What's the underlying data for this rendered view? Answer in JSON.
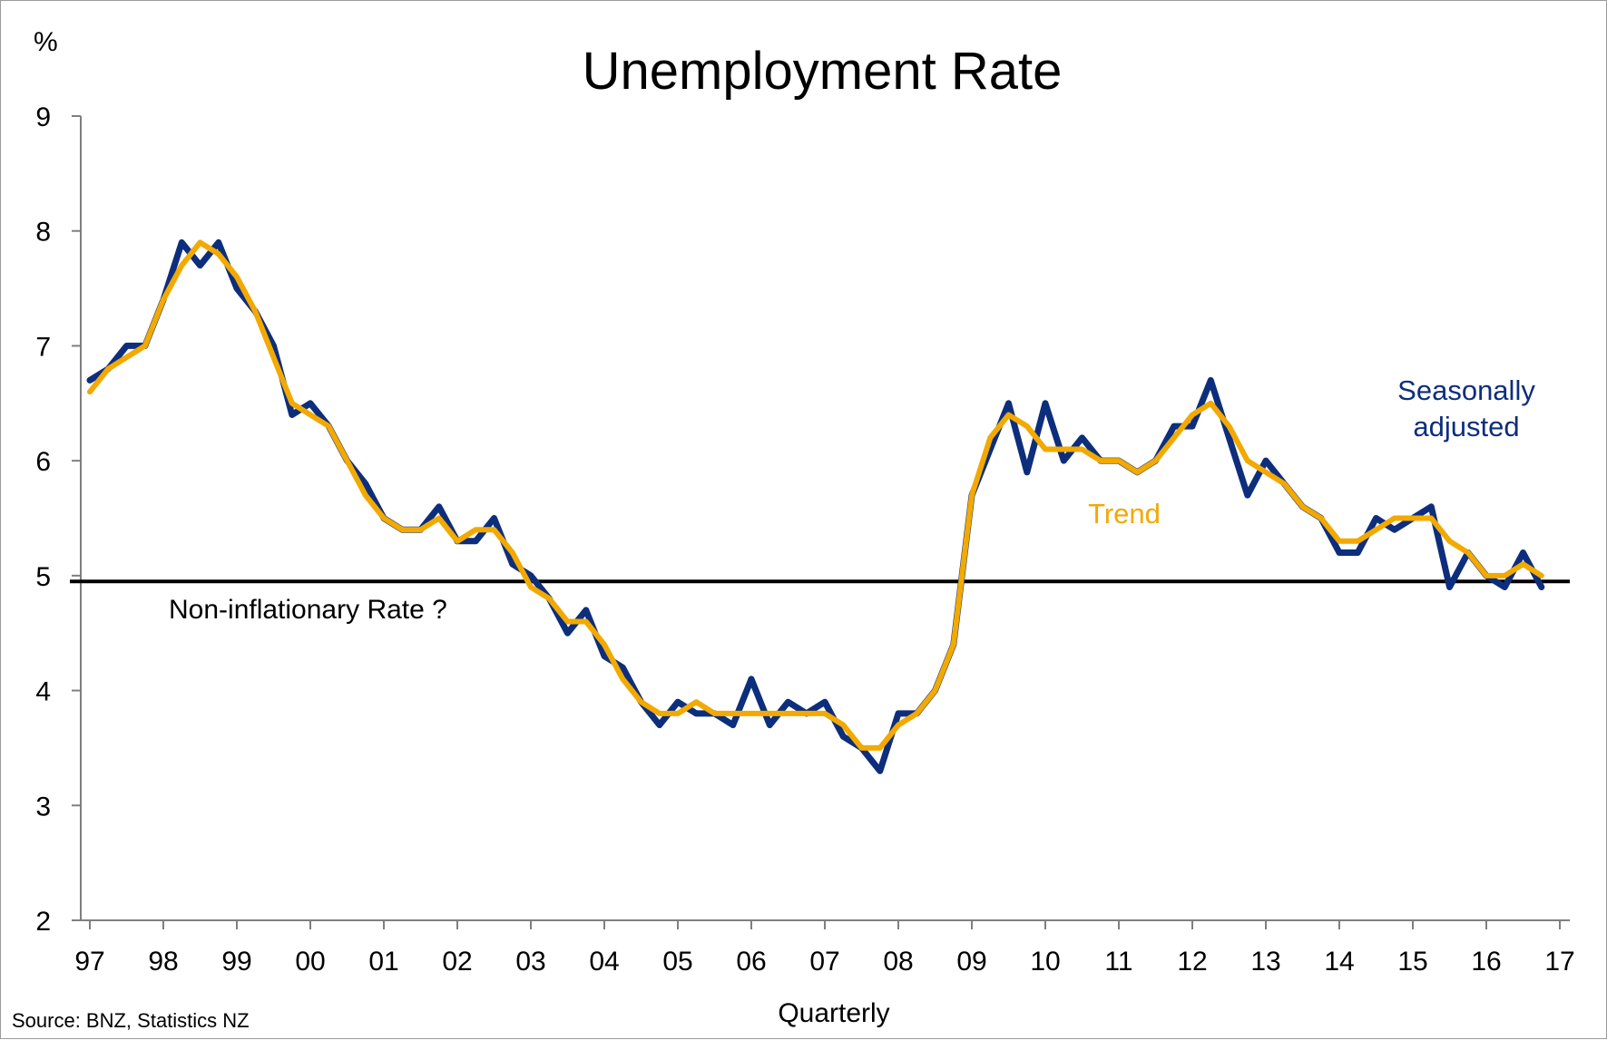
{
  "chart_data": {
    "type": "line",
    "title": "Unemployment Rate",
    "y_unit": "%",
    "xlabel": "Quarterly",
    "ylabel": "",
    "ylim": [
      2,
      9
    ],
    "yticks": [
      2,
      3,
      4,
      5,
      6,
      7,
      8,
      9
    ],
    "x_tick_labels": [
      "97",
      "98",
      "99",
      "00",
      "01",
      "02",
      "03",
      "04",
      "05",
      "06",
      "07",
      "08",
      "09",
      "10",
      "11",
      "12",
      "13",
      "14",
      "15",
      "16",
      "17"
    ],
    "x_start": "1997 Q1",
    "x_end": "2017 Q1",
    "grid": false,
    "reference_line": {
      "value": 4.95,
      "label": "Non-inflationary Rate ?"
    },
    "series": [
      {
        "name": "Seasonally adjusted",
        "color": "#0d2e7c",
        "values": [
          6.7,
          6.8,
          7.0,
          7.0,
          7.4,
          7.9,
          7.7,
          7.9,
          7.5,
          7.3,
          7.0,
          6.4,
          6.5,
          6.3,
          6.0,
          5.8,
          5.5,
          5.4,
          5.4,
          5.6,
          5.3,
          5.3,
          5.5,
          5.1,
          5.0,
          4.8,
          4.5,
          4.7,
          4.3,
          4.2,
          3.9,
          3.7,
          3.9,
          3.8,
          3.8,
          3.7,
          4.1,
          3.7,
          3.9,
          3.8,
          3.9,
          3.6,
          3.5,
          3.3,
          3.8,
          3.8,
          4.0,
          4.4,
          5.7,
          6.1,
          6.5,
          5.9,
          6.5,
          6.0,
          6.2,
          6.0,
          6.0,
          5.9,
          6.0,
          6.3,
          6.3,
          6.7,
          6.2,
          5.7,
          6.0,
          5.8,
          5.6,
          5.5,
          5.2,
          5.2,
          5.5,
          5.4,
          5.5,
          5.6,
          4.9,
          5.2,
          5.0,
          4.9,
          5.2,
          4.9
        ]
      },
      {
        "name": "Trend",
        "color": "#f2a900",
        "values": [
          6.6,
          6.8,
          6.9,
          7.0,
          7.4,
          7.7,
          7.9,
          7.8,
          7.6,
          7.3,
          6.9,
          6.5,
          6.4,
          6.3,
          6.0,
          5.7,
          5.5,
          5.4,
          5.4,
          5.5,
          5.3,
          5.4,
          5.4,
          5.2,
          4.9,
          4.8,
          4.6,
          4.6,
          4.4,
          4.1,
          3.9,
          3.8,
          3.8,
          3.9,
          3.8,
          3.8,
          3.8,
          3.8,
          3.8,
          3.8,
          3.8,
          3.7,
          3.5,
          3.5,
          3.7,
          3.8,
          4.0,
          4.4,
          5.7,
          6.2,
          6.4,
          6.3,
          6.1,
          6.1,
          6.1,
          6.0,
          6.0,
          5.9,
          6.0,
          6.2,
          6.4,
          6.5,
          6.3,
          6.0,
          5.9,
          5.8,
          5.6,
          5.5,
          5.3,
          5.3,
          5.4,
          5.5,
          5.5,
          5.5,
          5.3,
          5.2,
          5.0,
          5.0,
          5.1,
          5.0
        ]
      }
    ]
  },
  "labels": {
    "series_1_line1": "Seasonally",
    "series_1_line2": "adjusted",
    "series_2": "Trend",
    "reference": "Non-inflationary Rate ?",
    "source": "Source: BNZ, Statistics NZ"
  },
  "colors": {
    "seasonally_adjusted": "#0d2e7c",
    "trend": "#f2a900",
    "reference_line": "#000000"
  }
}
